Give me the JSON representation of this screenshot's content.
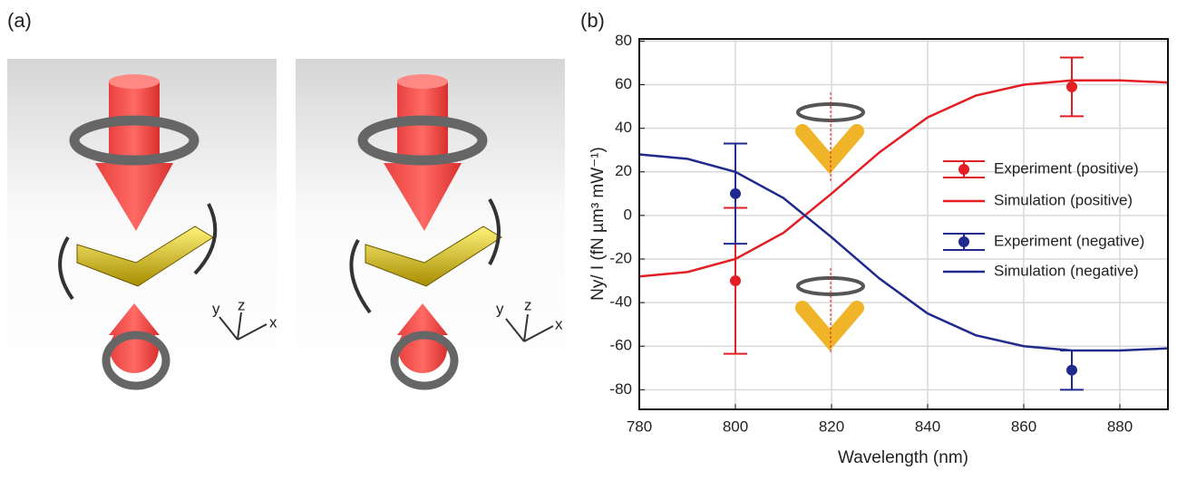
{
  "panels": {
    "a": "(a)",
    "b": "(b)"
  },
  "illustration": {
    "left_axes": [
      "y",
      "z",
      "x"
    ],
    "right_axes": [
      "y",
      "z",
      "x"
    ]
  },
  "chart_data": {
    "type": "line",
    "x_label": "Wavelength (nm)",
    "y_label": "Ny/ I (fN µm³ mW⁻¹)",
    "xlim": [
      780,
      890
    ],
    "xticks": [
      780,
      800,
      820,
      840,
      860,
      880
    ],
    "ylim": [
      -89,
      81
    ],
    "yticks": [
      -80,
      -60,
      -40,
      -20,
      0,
      20,
      40,
      60,
      80
    ],
    "grid": true,
    "series": [
      {
        "name": "Experiment (positive)",
        "type": "errorbar",
        "color": "#e31e24",
        "x": [
          800,
          870
        ],
        "values": [
          -30,
          59
        ],
        "errors": [
          33.5,
          13.5
        ]
      },
      {
        "name": "Simulation (positive)",
        "type": "line",
        "color": "#e31e24",
        "x": [
          780,
          790,
          800,
          810,
          820,
          830,
          840,
          850,
          860,
          870,
          880,
          890
        ],
        "values": [
          -28,
          -26,
          -20,
          -8,
          10,
          29,
          45,
          55,
          60,
          62,
          62,
          61
        ]
      },
      {
        "name": "Experiment (negative)",
        "type": "errorbar",
        "color": "#1f2a8c",
        "x": [
          800,
          870
        ],
        "values": [
          10,
          -71
        ],
        "errors": [
          23,
          9
        ]
      },
      {
        "name": "Simulation (negative)",
        "type": "line",
        "color": "#1f2a8c",
        "x": [
          780,
          790,
          800,
          810,
          820,
          830,
          840,
          850,
          860,
          870,
          880,
          890
        ],
        "values": [
          28,
          26,
          20,
          8,
          -10,
          -29,
          -45,
          -55,
          -60,
          -62,
          -62,
          -61
        ]
      }
    ]
  }
}
